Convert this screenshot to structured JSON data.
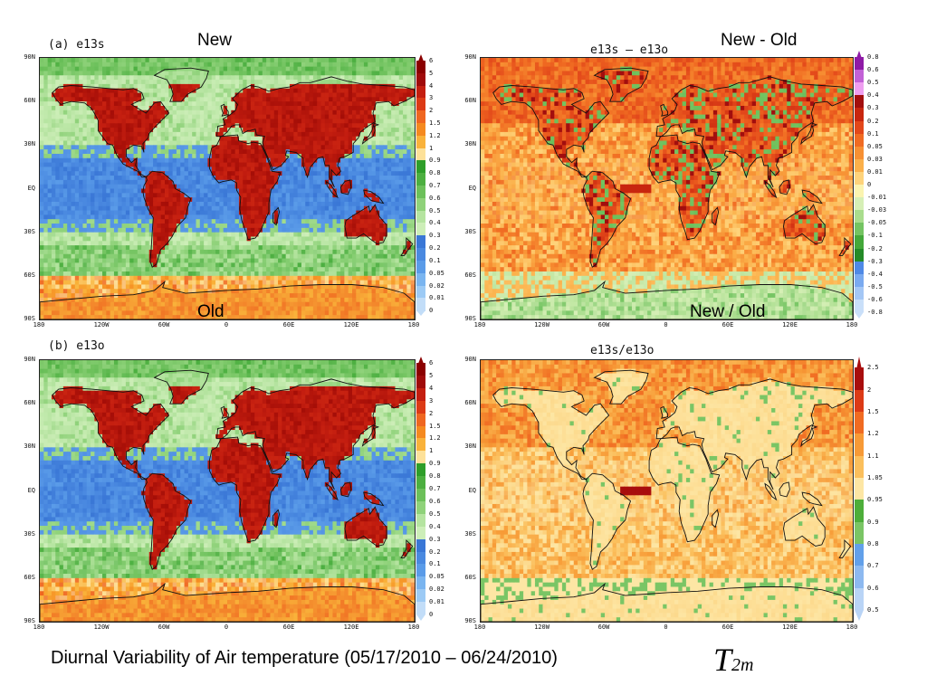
{
  "panels": [
    {
      "id": "a",
      "title": "(a) e13s",
      "heading": "New",
      "colorbar": "abs",
      "style": "abs",
      "cbar_labels": [
        "6",
        "5",
        "4",
        "3",
        "2",
        "1.5",
        "1.2",
        "1",
        "0.9",
        "0.8",
        "0.7",
        "0.6",
        "0.5",
        "0.4",
        "0.3",
        "0.2",
        "0.1",
        "0.05",
        "0.02",
        "0.01",
        "0"
      ]
    },
    {
      "id": "c",
      "title": "e13s – e13o",
      "heading": "New - Old",
      "colorbar": "diff",
      "style": "diff",
      "cbar_labels": [
        "0.8",
        "0.6",
        "0.5",
        "0.4",
        "0.3",
        "0.2",
        "0.1",
        "0.05",
        "0.03",
        "0.01",
        "0",
        "-0.01",
        "-0.03",
        "-0.05",
        "-0.1",
        "-0.2",
        "-0.3",
        "-0.4",
        "-0.5",
        "-0.6",
        "-0.8"
      ]
    },
    {
      "id": "b",
      "title": "(b) e13o",
      "heading": "Old",
      "colorbar": "abs",
      "style": "abs",
      "cbar_labels": [
        "6",
        "5",
        "4",
        "3",
        "2",
        "1.5",
        "1.2",
        "1",
        "0.9",
        "0.8",
        "0.7",
        "0.6",
        "0.5",
        "0.4",
        "0.3",
        "0.2",
        "0.1",
        "0.05",
        "0.02",
        "0.01",
        "0"
      ]
    },
    {
      "id": "d",
      "title": "e13s/e13o",
      "heading": "New / Old",
      "colorbar": "ratio",
      "style": "ratio",
      "cbar_labels": [
        "2.5",
        "2",
        "1.5",
        "1.2",
        "1.1",
        "1.05",
        "0.95",
        "0.9",
        "0.8",
        "0.7",
        "0.6",
        "0.5"
      ]
    }
  ],
  "lat_labels": [
    "90N",
    "60N",
    "30N",
    "EQ",
    "30S",
    "60S",
    "90S"
  ],
  "lon_labels": [
    "180",
    "120W",
    "60W",
    "0",
    "60E",
    "120E",
    "180"
  ],
  "colors": {
    "abs": [
      "#8b0000",
      "#a00a0a",
      "#c41e10",
      "#dc3a16",
      "#ef6620",
      "#f5891f",
      "#f9b23a",
      "#fde199",
      "#2e9e2a",
      "#4caf40",
      "#6cc05a",
      "#8fd27a",
      "#b5e4a0",
      "#cdeeb8",
      "#3a77d6",
      "#4a89e0",
      "#5a9be8",
      "#7ab5f0",
      "#9ccaf5",
      "#c2ddf8"
    ],
    "diff": [
      "#8e1aa6",
      "#c261d6",
      "#ee9ef0",
      "#a20e0e",
      "#c8260f",
      "#e2471a",
      "#f06b22",
      "#f79033",
      "#fbb04a",
      "#fed37b",
      "#fbf4b0",
      "#d6efb6",
      "#a9dd8d",
      "#74c462",
      "#44a83a",
      "#248a28",
      "#4f89e6",
      "#7aaaf0",
      "#a4c7f5",
      "#c9dff9"
    ],
    "ratio": [
      "#a80d0d",
      "#dc3a16",
      "#f06b22",
      "#f79a36",
      "#fbbf5c",
      "#fde6a4",
      "#4dae3a",
      "#7ac565",
      "#62a0ea",
      "#8db9f0",
      "#b9d4f6"
    ]
  },
  "caption": "Diurnal Variability of Air temperature (05/17/2010 – 06/24/2010)",
  "symbol": {
    "base": "T",
    "sub": "2m"
  }
}
